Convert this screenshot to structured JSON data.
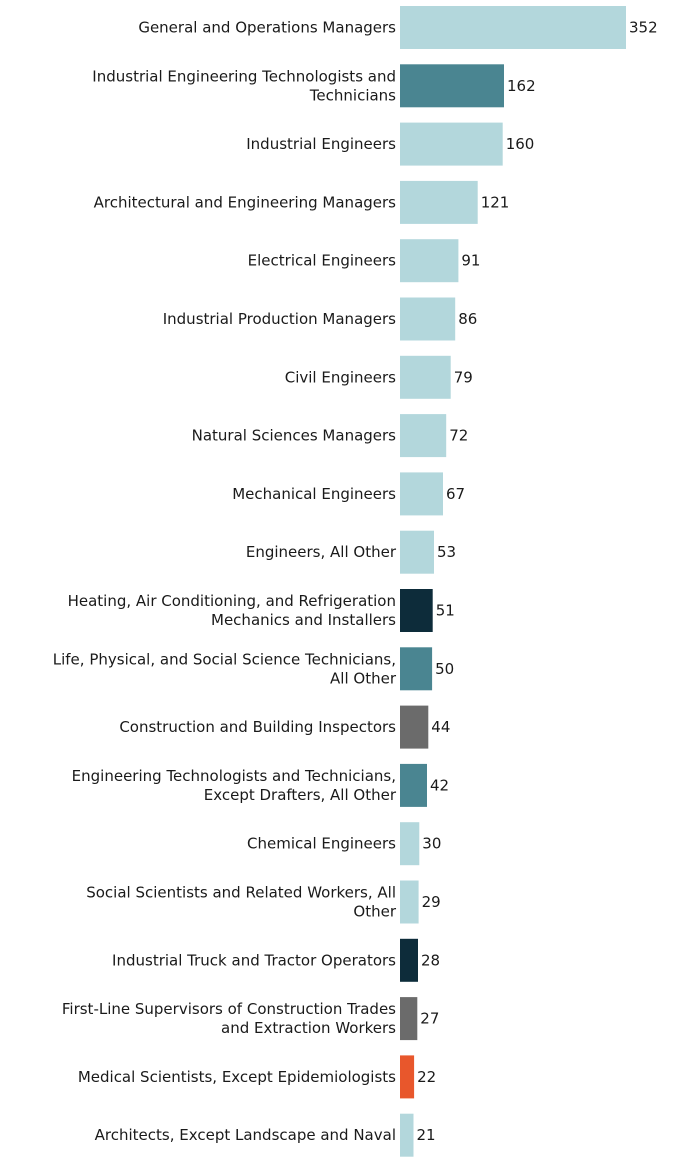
{
  "chart_data": {
    "type": "bar",
    "orientation": "horizontal",
    "categories": [
      [
        "General and Operations Managers"
      ],
      [
        "Industrial Engineering Technologists and",
        "Technicians"
      ],
      [
        "Industrial Engineers"
      ],
      [
        "Architectural and Engineering Managers"
      ],
      [
        "Electrical Engineers"
      ],
      [
        "Industrial Production Managers"
      ],
      [
        "Civil Engineers"
      ],
      [
        "Natural Sciences Managers"
      ],
      [
        "Mechanical Engineers"
      ],
      [
        "Engineers, All Other"
      ],
      [
        "Heating, Air Conditioning, and Refrigeration",
        "Mechanics and Installers"
      ],
      [
        "Life, Physical, and Social Science Technicians,",
        "All Other"
      ],
      [
        "Construction and Building Inspectors"
      ],
      [
        "Engineering Technologists and Technicians,",
        "Except Drafters, All Other"
      ],
      [
        "Chemical Engineers"
      ],
      [
        "Social Scientists and Related Workers, All",
        "Other"
      ],
      [
        "Industrial Truck and Tractor Operators"
      ],
      [
        "First-Line Supervisors of Construction Trades",
        "and Extraction Workers"
      ],
      [
        "Medical Scientists, Except Epidemiologists"
      ],
      [
        "Architects, Except Landscape and Naval"
      ]
    ],
    "values": [
      352,
      162,
      160,
      121,
      91,
      86,
      79,
      72,
      67,
      53,
      51,
      50,
      44,
      42,
      30,
      29,
      28,
      27,
      22,
      21
    ],
    "colors": [
      "#b3d7dc",
      "#4a8591",
      "#b3d7dc",
      "#b3d7dc",
      "#b3d7dc",
      "#b3d7dc",
      "#b3d7dc",
      "#b3d7dc",
      "#b3d7dc",
      "#b3d7dc",
      "#0d2c3a",
      "#4a8591",
      "#6b6b6b",
      "#4a8591",
      "#b3d7dc",
      "#b3d7dc",
      "#0d2c3a",
      "#6b6b6b",
      "#e8572c",
      "#b3d7dc"
    ],
    "title": "",
    "xlabel": "",
    "ylabel": "",
    "xlim": [
      0,
      352
    ],
    "grid": false,
    "legend": "none"
  }
}
